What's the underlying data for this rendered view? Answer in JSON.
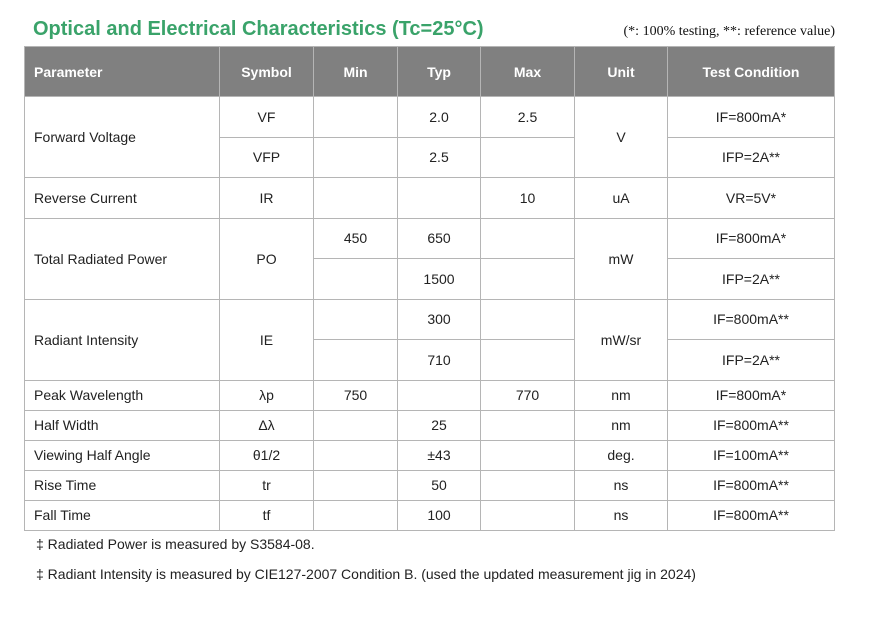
{
  "title": "Optical and Electrical Characteristics (Tc=25°C)",
  "note": "(*: 100% testing, **: reference value)",
  "headers": {
    "parameter": "Parameter",
    "symbol": "Symbol",
    "min": "Min",
    "typ": "Typ",
    "max": "Max",
    "unit": "Unit",
    "test": "Test Condition"
  },
  "rows": {
    "fv": {
      "param": "Forward Voltage",
      "unit": "V",
      "a": {
        "symbol": "VF",
        "min": "",
        "typ": "2.0",
        "max": "2.5",
        "test": "IF=800mA*"
      },
      "b": {
        "symbol": "VFP",
        "min": "",
        "typ": "2.5",
        "max": "",
        "test": "IFP=2A**"
      }
    },
    "rc": {
      "param": "Reverse Current",
      "symbol": "IR",
      "min": "",
      "typ": "",
      "max": "10",
      "unit": "uA",
      "test": "VR=5V*"
    },
    "trp": {
      "param": "Total Radiated Power",
      "symbol": "PO",
      "unit": "mW",
      "a": {
        "min": "450",
        "typ": "650",
        "max": "",
        "test": "IF=800mA*"
      },
      "b": {
        "min": "",
        "typ": "1500",
        "max": "",
        "test": "IFP=2A**"
      }
    },
    "ri": {
      "param": "Radiant Intensity",
      "symbol": "IE",
      "unit": "mW/sr",
      "a": {
        "min": "",
        "typ": "300",
        "max": "",
        "test": "IF=800mA**"
      },
      "b": {
        "min": "",
        "typ": "710",
        "max": "",
        "test": "IFP=2A**"
      }
    },
    "pw": {
      "param": "Peak Wavelength",
      "symbol": "λp",
      "min": "750",
      "typ": "",
      "max": "770",
      "unit": "nm",
      "test": "IF=800mA*"
    },
    "hw": {
      "param": "Half Width",
      "symbol": "Δλ",
      "min": "",
      "typ": "25",
      "max": "",
      "unit": "nm",
      "test": "IF=800mA**"
    },
    "vha": {
      "param": "Viewing Half Angle",
      "symbol": "θ1/2",
      "min": "",
      "typ": "±43",
      "max": "",
      "unit": "deg.",
      "test": "IF=100mA**"
    },
    "rt": {
      "param": "Rise Time",
      "symbol": "tr",
      "min": "",
      "typ": "50",
      "max": "",
      "unit": "ns",
      "test": "IF=800mA**"
    },
    "ft": {
      "param": "Fall Time",
      "symbol": "tf",
      "min": "",
      "typ": "100",
      "max": "",
      "unit": "ns",
      "test": "IF=800mA**"
    }
  },
  "footnotes": [
    "‡ Radiated Power is measured by S3584-08.",
    "‡ Radiant Intensity is measured by CIE127-2007 Condition B. (used the updated measurement jig in 2024)"
  ]
}
